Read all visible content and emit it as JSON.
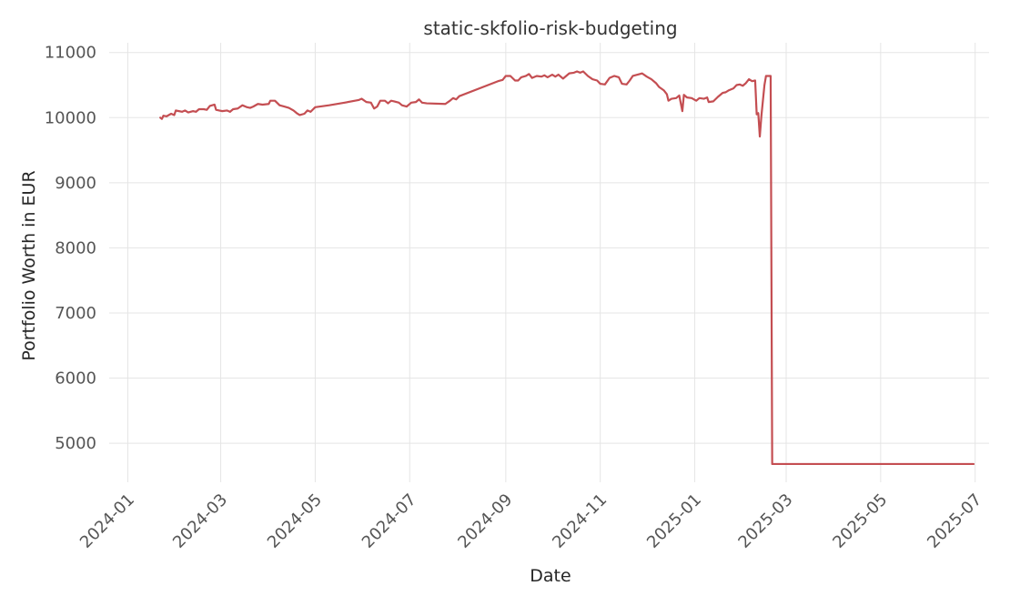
{
  "chart_data": {
    "type": "line",
    "title": "static-skfolio-risk-budgeting",
    "xlabel": "Date",
    "ylabel": "Portfolio Worth in EUR",
    "x_ticks": [
      "2024-01",
      "2024-03",
      "2024-05",
      "2024-07",
      "2024-09",
      "2024-11",
      "2025-01",
      "2025-03",
      "2025-05",
      "2025-07"
    ],
    "y_ticks": [
      5000,
      6000,
      7000,
      8000,
      9000,
      10000,
      11000
    ],
    "xlim": [
      "2023-12-20",
      "2025-07-10"
    ],
    "ylim": [
      4400,
      11150
    ],
    "grid": true,
    "colors": {
      "series": "#c44e52"
    },
    "series": [
      {
        "points": [
          [
            "2024-01-22",
            10000
          ],
          [
            "2024-01-23",
            9980
          ],
          [
            "2024-01-24",
            10030
          ],
          [
            "2024-01-26",
            10020
          ],
          [
            "2024-01-29",
            10060
          ],
          [
            "2024-01-31",
            10040
          ],
          [
            "2024-02-01",
            10110
          ],
          [
            "2024-02-03",
            10100
          ],
          [
            "2024-02-05",
            10090
          ],
          [
            "2024-02-07",
            10110
          ],
          [
            "2024-02-09",
            10080
          ],
          [
            "2024-02-12",
            10100
          ],
          [
            "2024-02-14",
            10090
          ],
          [
            "2024-02-16",
            10130
          ],
          [
            "2024-02-19",
            10130
          ],
          [
            "2024-02-21",
            10120
          ],
          [
            "2024-02-23",
            10180
          ],
          [
            "2024-02-26",
            10200
          ],
          [
            "2024-02-27",
            10120
          ],
          [
            "2024-02-29",
            10110
          ],
          [
            "2024-03-02",
            10100
          ],
          [
            "2024-03-05",
            10110
          ],
          [
            "2024-03-07",
            10090
          ],
          [
            "2024-03-09",
            10130
          ],
          [
            "2024-03-12",
            10140
          ],
          [
            "2024-03-15",
            10190
          ],
          [
            "2024-03-18",
            10160
          ],
          [
            "2024-03-20",
            10150
          ],
          [
            "2024-03-22",
            10170
          ],
          [
            "2024-03-25",
            10210
          ],
          [
            "2024-03-28",
            10200
          ],
          [
            "2024-04-01",
            10210
          ],
          [
            "2024-04-02",
            10260
          ],
          [
            "2024-04-05",
            10260
          ],
          [
            "2024-04-08",
            10190
          ],
          [
            "2024-04-11",
            10170
          ],
          [
            "2024-04-14",
            10150
          ],
          [
            "2024-04-17",
            10110
          ],
          [
            "2024-04-19",
            10070
          ],
          [
            "2024-04-21",
            10040
          ],
          [
            "2024-04-24",
            10060
          ],
          [
            "2024-04-26",
            10110
          ],
          [
            "2024-04-28",
            10090
          ],
          [
            "2024-05-01",
            10160
          ],
          [
            "2024-05-10",
            10190
          ],
          [
            "2024-05-20",
            10230
          ],
          [
            "2024-05-29",
            10270
          ],
          [
            "2024-05-31",
            10290
          ],
          [
            "2024-06-03",
            10240
          ],
          [
            "2024-06-06",
            10230
          ],
          [
            "2024-06-08",
            10140
          ],
          [
            "2024-06-10",
            10170
          ],
          [
            "2024-06-12",
            10260
          ],
          [
            "2024-06-15",
            10260
          ],
          [
            "2024-06-17",
            10220
          ],
          [
            "2024-06-19",
            10260
          ],
          [
            "2024-06-21",
            10250
          ],
          [
            "2024-06-24",
            10230
          ],
          [
            "2024-06-26",
            10190
          ],
          [
            "2024-06-29",
            10170
          ],
          [
            "2024-07-02",
            10230
          ],
          [
            "2024-07-05",
            10240
          ],
          [
            "2024-07-07",
            10280
          ],
          [
            "2024-07-09",
            10230
          ],
          [
            "2024-07-12",
            10220
          ],
          [
            "2024-07-24",
            10210
          ],
          [
            "2024-07-27",
            10260
          ],
          [
            "2024-07-29",
            10300
          ],
          [
            "2024-07-31",
            10280
          ],
          [
            "2024-08-02",
            10330
          ],
          [
            "2024-08-27",
            10560
          ],
          [
            "2024-08-30",
            10580
          ],
          [
            "2024-09-01",
            10640
          ],
          [
            "2024-09-04",
            10640
          ],
          [
            "2024-09-07",
            10570
          ],
          [
            "2024-09-09",
            10570
          ],
          [
            "2024-09-11",
            10620
          ],
          [
            "2024-09-14",
            10640
          ],
          [
            "2024-09-16",
            10670
          ],
          [
            "2024-09-18",
            10610
          ],
          [
            "2024-09-21",
            10640
          ],
          [
            "2024-09-24",
            10630
          ],
          [
            "2024-09-26",
            10650
          ],
          [
            "2024-09-28",
            10620
          ],
          [
            "2024-10-01",
            10660
          ],
          [
            "2024-10-03",
            10630
          ],
          [
            "2024-10-05",
            10660
          ],
          [
            "2024-10-08",
            10600
          ],
          [
            "2024-10-10",
            10640
          ],
          [
            "2024-10-12",
            10680
          ],
          [
            "2024-10-15",
            10690
          ],
          [
            "2024-10-17",
            10710
          ],
          [
            "2024-10-19",
            10690
          ],
          [
            "2024-10-21",
            10710
          ],
          [
            "2024-10-24",
            10640
          ],
          [
            "2024-10-27",
            10590
          ],
          [
            "2024-10-30",
            10570
          ],
          [
            "2024-11-01",
            10520
          ],
          [
            "2024-11-04",
            10510
          ],
          [
            "2024-11-07",
            10610
          ],
          [
            "2024-11-10",
            10640
          ],
          [
            "2024-11-13",
            10620
          ],
          [
            "2024-11-15",
            10520
          ],
          [
            "2024-11-18",
            10510
          ],
          [
            "2024-11-20",
            10570
          ],
          [
            "2024-11-22",
            10640
          ],
          [
            "2024-11-25",
            10660
          ],
          [
            "2024-11-28",
            10680
          ],
          [
            "2024-12-01",
            10630
          ],
          [
            "2024-12-04",
            10590
          ],
          [
            "2024-12-07",
            10530
          ],
          [
            "2024-12-09",
            10470
          ],
          [
            "2024-12-12",
            10420
          ],
          [
            "2024-12-14",
            10360
          ],
          [
            "2024-12-15",
            10260
          ],
          [
            "2024-12-17",
            10290
          ],
          [
            "2024-12-20",
            10300
          ],
          [
            "2024-12-22",
            10340
          ],
          [
            "2024-12-24",
            10100
          ],
          [
            "2024-12-25",
            10350
          ],
          [
            "2024-12-27",
            10310
          ],
          [
            "2024-12-30",
            10300
          ],
          [
            "2025-01-02",
            10260
          ],
          [
            "2025-01-04",
            10300
          ],
          [
            "2025-01-07",
            10290
          ],
          [
            "2025-01-09",
            10310
          ],
          [
            "2025-01-10",
            10240
          ],
          [
            "2025-01-13",
            10250
          ],
          [
            "2025-01-16",
            10320
          ],
          [
            "2025-01-19",
            10380
          ],
          [
            "2025-01-21",
            10390
          ],
          [
            "2025-01-23",
            10420
          ],
          [
            "2025-01-26",
            10450
          ],
          [
            "2025-01-28",
            10500
          ],
          [
            "2025-01-30",
            10510
          ],
          [
            "2025-02-01",
            10490
          ],
          [
            "2025-02-03",
            10530
          ],
          [
            "2025-02-05",
            10590
          ],
          [
            "2025-02-07",
            10560
          ],
          [
            "2025-02-09",
            10570
          ],
          [
            "2025-02-10",
            10050
          ],
          [
            "2025-02-11",
            10070
          ],
          [
            "2025-02-12",
            9710
          ],
          [
            "2025-02-13",
            10020
          ],
          [
            "2025-02-15",
            10500
          ],
          [
            "2025-02-16",
            10640
          ],
          [
            "2025-02-19",
            10640
          ],
          [
            "2025-02-20",
            4680
          ],
          [
            "2025-06-30",
            4680
          ]
        ]
      }
    ]
  }
}
